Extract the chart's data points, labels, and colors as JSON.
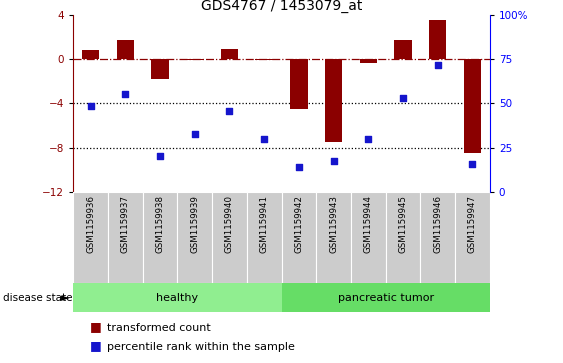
{
  "title": "GDS4767 / 1453079_at",
  "samples": [
    "GSM1159936",
    "GSM1159937",
    "GSM1159938",
    "GSM1159939",
    "GSM1159940",
    "GSM1159941",
    "GSM1159942",
    "GSM1159943",
    "GSM1159944",
    "GSM1159945",
    "GSM1159946",
    "GSM1159947"
  ],
  "transformed_count": [
    0.8,
    1.7,
    -1.8,
    -0.1,
    0.9,
    -0.05,
    -4.5,
    -7.5,
    -0.4,
    1.7,
    3.5,
    -8.5
  ],
  "percentile_rank_mapped": [
    -4.24,
    -3.12,
    -8.72,
    -6.72,
    -4.72,
    -7.22,
    -9.72,
    -9.22,
    -7.22,
    -3.47,
    -0.5,
    -9.47
  ],
  "bar_color": "#8B0000",
  "scatter_color": "#1515CC",
  "background_color": "#ffffff",
  "ylim_left": [
    -12,
    4
  ],
  "ylim_right": [
    0,
    100
  ],
  "yticks_left": [
    4,
    0,
    -4,
    -8,
    -12
  ],
  "yticks_right": [
    100,
    75,
    50,
    25,
    0
  ],
  "dotted_lines": [
    -4,
    -8
  ],
  "legend_labels": [
    "transformed count",
    "percentile rank within the sample"
  ],
  "legend_colors": [
    "#8B0000",
    "#1515CC"
  ],
  "healthy_color": "#90EE90",
  "tumor_color": "#66DD66",
  "label_bg": "#CCCCCC"
}
